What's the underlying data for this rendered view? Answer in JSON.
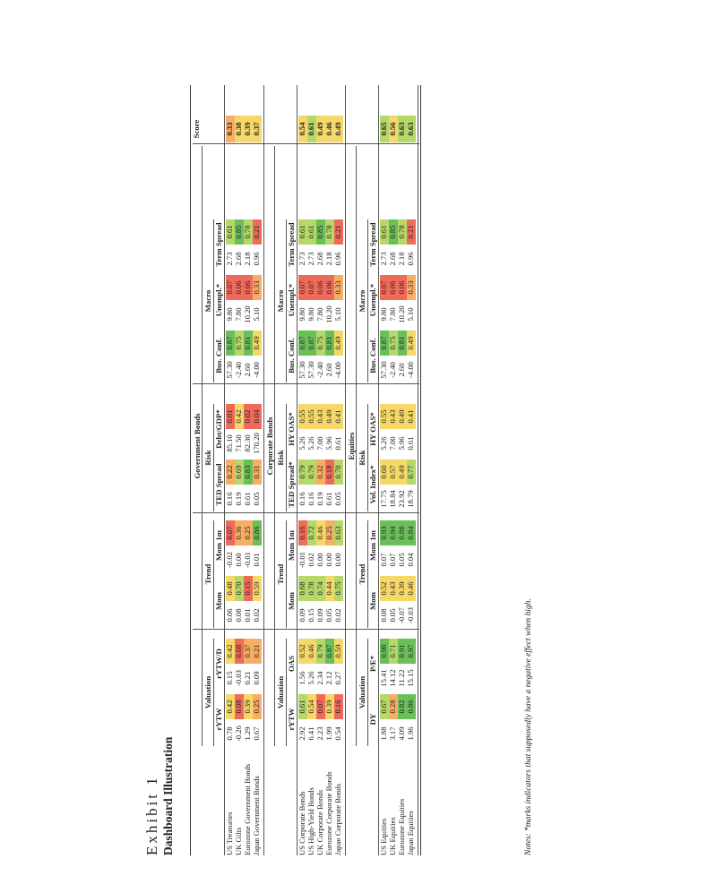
{
  "exhibit": {
    "label": "Exhibit 1",
    "title": "Dashboard Illustration"
  },
  "score_header": "Score",
  "notes": "Notes: *marks indicators that supposedly have a negative effect when high.",
  "colors": {
    "green": "#6bbf59",
    "lightgreen": "#b5d869",
    "yellow": "#f5d867",
    "orange": "#f7ad63",
    "red": "#ef6a5a"
  },
  "sections": [
    {
      "name": "Government Bonds",
      "groups": [
        {
          "name": "Valuation",
          "columns": [
            "rYTW",
            "rYTW/D"
          ]
        },
        {
          "name": "Trend",
          "columns": [
            "Mom",
            "Mom 1m"
          ]
        },
        {
          "name": "Risk",
          "columns": [
            "TED Spread",
            "Debt/GDP*"
          ]
        },
        {
          "name": "Macro",
          "columns": [
            "Bus. Conf.",
            "Unempl.*",
            "Term Spread"
          ]
        }
      ],
      "rows": [
        {
          "label": "US Treasuries",
          "cells": [
            [
              "0.78",
              "0.42",
              "yellow"
            ],
            [
              "0.15",
              "0.42",
              "yellow"
            ],
            [
              "0.06",
              "0.48",
              "yellow"
            ],
            [
              "-0.02",
              "0.07",
              "red"
            ],
            [
              "0.16",
              "0.22",
              "orange"
            ],
            [
              "85.10",
              "0.01",
              "red"
            ],
            [
              "57.30",
              "0.87",
              "green"
            ],
            [
              "9.80",
              "0.07",
              "red"
            ],
            [
              "2.73",
              "0.61",
              "lightgreen"
            ]
          ],
          "score": [
            "0.33",
            "orange"
          ]
        },
        {
          "label": "UK Gilts",
          "cells": [
            [
              "-0.26",
              "0.08",
              "red"
            ],
            [
              "-0.03",
              "0.08",
              "red"
            ],
            [
              "0.08",
              "0.70",
              "lightgreen"
            ],
            [
              "0.00",
              "0.36",
              "orange"
            ],
            [
              "0.19",
              "0.69",
              "lightgreen"
            ],
            [
              "71.50",
              "0.42",
              "yellow"
            ],
            [
              "-2.40",
              "0.75",
              "lightgreen"
            ],
            [
              "7.80",
              "0.06",
              "red"
            ],
            [
              "2.68",
              "0.85",
              "green"
            ]
          ],
          "score": [
            "0.38",
            "yellow"
          ]
        },
        {
          "label": "Eurozone Government Bonds",
          "cells": [
            [
              "1.29",
              "0.39",
              "yellow"
            ],
            [
              "0.21",
              "0.37",
              "orange"
            ],
            [
              "0.01",
              "0.15",
              "red"
            ],
            [
              "-0.01",
              "0.25",
              "orange"
            ],
            [
              "0.61",
              "0.83",
              "green"
            ],
            [
              "82.30",
              "0.02",
              "red"
            ],
            [
              "2.60",
              "0.81",
              "green"
            ],
            [
              "10.20",
              "0.06",
              "red"
            ],
            [
              "2.18",
              "0.78",
              "lightgreen"
            ]
          ],
          "score": [
            "0.39",
            "yellow"
          ]
        },
        {
          "label": "Japan Government Bonds",
          "cells": [
            [
              "0.67",
              "0.25",
              "orange"
            ],
            [
              "0.09",
              "0.21",
              "orange"
            ],
            [
              "0.02",
              "0.59",
              "yellow"
            ],
            [
              "0.01",
              "0.86",
              "green"
            ],
            [
              "0.05",
              "0.31",
              "orange"
            ],
            [
              "170.20",
              "0.04",
              "red"
            ],
            [
              "-4.00",
              "0.49",
              "yellow"
            ],
            [
              "5.10",
              "0.33",
              "orange"
            ],
            [
              "0.96",
              "0.21",
              "red"
            ]
          ],
          "score": [
            "0.37",
            "yellow"
          ]
        }
      ]
    },
    {
      "name": "Corporate Bonds",
      "groups": [
        {
          "name": "Valuation",
          "columns": [
            "rYTW",
            "OAS"
          ]
        },
        {
          "name": "Trend",
          "columns": [
            "Mom",
            "Mom 1m"
          ]
        },
        {
          "name": "Risk",
          "columns": [
            "TED Spread*",
            "HY OAS*"
          ]
        },
        {
          "name": "Macro",
          "columns": [
            "Bus. Conf.",
            "Unempl.*",
            "Term Spread"
          ]
        }
      ],
      "rows": [
        {
          "label": "US Corporate Bonds",
          "cells": [
            [
              "2.92",
              "0.61",
              "lightgreen"
            ],
            [
              "1.56",
              "0.52",
              "yellow"
            ],
            [
              "0.09",
              "0.68",
              "lightgreen"
            ],
            [
              "-0.01",
              "0.16",
              "red"
            ],
            [
              "0.16",
              "0.79",
              "lightgreen"
            ],
            [
              "5.26",
              "0.55",
              "yellow"
            ],
            [
              "57.30",
              "0.87",
              "green"
            ],
            [
              "9.80",
              "0.07",
              "red"
            ],
            [
              "2.73",
              "0.61",
              "lightgreen"
            ]
          ],
          "score": [
            "0.54",
            "yellow"
          ]
        },
        {
          "label": "US High-Yield Bonds",
          "cells": [
            [
              "6.41",
              "0.54",
              "yellow"
            ],
            [
              "5.26",
              "0.46",
              "yellow"
            ],
            [
              "0.15",
              "0.78",
              "lightgreen"
            ],
            [
              "0.02",
              "0.72",
              "lightgreen"
            ],
            [
              "0.16",
              "0.79",
              "lightgreen"
            ],
            [
              "5.26",
              "0.55",
              "yellow"
            ],
            [
              "57.30",
              "0.87",
              "green"
            ],
            [
              "9.80",
              "0.07",
              "red"
            ],
            [
              "2.73",
              "0.61",
              "lightgreen"
            ]
          ],
          "score": [
            "0.61",
            "lightgreen"
          ]
        },
        {
          "label": "UK Corporate Bonds",
          "cells": [
            [
              "2.23",
              "0.07",
              "red"
            ],
            [
              "2.34",
              "0.79",
              "lightgreen"
            ],
            [
              "0.09",
              "0.74",
              "lightgreen"
            ],
            [
              "0.00",
              "0.46",
              "yellow"
            ],
            [
              "0.19",
              "0.32",
              "orange"
            ],
            [
              "7.00",
              "0.43",
              "yellow"
            ],
            [
              "-2.40",
              "0.75",
              "lightgreen"
            ],
            [
              "7.80",
              "0.06",
              "red"
            ],
            [
              "2.68",
              "0.85",
              "green"
            ]
          ],
          "score": [
            "0.49",
            "yellow"
          ]
        },
        {
          "label": "Eurozone Corporate Bonds",
          "cells": [
            [
              "1.99",
              "0.39",
              "yellow"
            ],
            [
              "2.12",
              "0.87",
              "green"
            ],
            [
              "0.05",
              "0.44",
              "yellow"
            ],
            [
              "0.00",
              "0.25",
              "orange"
            ],
            [
              "0.61",
              "0.18",
              "red"
            ],
            [
              "5.96",
              "0.49",
              "yellow"
            ],
            [
              "2.60",
              "0.81",
              "green"
            ],
            [
              "10.20",
              "0.06",
              "red"
            ],
            [
              "2.18",
              "0.78",
              "lightgreen"
            ]
          ],
          "score": [
            "0.46",
            "yellow"
          ]
        },
        {
          "label": "Japan Corporate Bonds",
          "cells": [
            [
              "0.54",
              "0.16",
              "red"
            ],
            [
              "0.27",
              "0.59",
              "yellow"
            ],
            [
              "0.02",
              "0.75",
              "lightgreen"
            ],
            [
              "0.00",
              "0.63",
              "lightgreen"
            ],
            [
              "0.05",
              "0.70",
              "lightgreen"
            ],
            [
              "0.61",
              "0.41",
              "yellow"
            ],
            [
              "-4.00",
              "0.49",
              "yellow"
            ],
            [
              "5.10",
              "0.33",
              "orange"
            ],
            [
              "0.96",
              "0.21",
              "red"
            ]
          ],
          "score": [
            "0.49",
            "yellow"
          ]
        }
      ]
    },
    {
      "name": "Equities",
      "groups": [
        {
          "name": "Valuation",
          "columns": [
            "DY",
            "P/E*"
          ]
        },
        {
          "name": "Trend",
          "columns": [
            "Mom",
            "Mom 1m"
          ]
        },
        {
          "name": "Risk",
          "columns": [
            "Vol. Index*",
            "HY OAS*"
          ]
        },
        {
          "name": "Macro",
          "columns": [
            "Bus. Conf.",
            "Unempl.*",
            "Term Spread"
          ]
        }
      ],
      "rows": [
        {
          "label": "US Equities",
          "cells": [
            [
              "1.88",
              "0.67",
              "lightgreen"
            ],
            [
              "15.41",
              "0.90",
              "green"
            ],
            [
              "0.08",
              "0.52",
              "yellow"
            ],
            [
              "0.07",
              "0.93",
              "green"
            ],
            [
              "17.75",
              "0.60",
              "yellow"
            ],
            [
              "5.26",
              "0.55",
              "yellow"
            ],
            [
              "57.30",
              "0.87",
              "green"
            ],
            [
              "9.80",
              "0.07",
              "red"
            ],
            [
              "2.73",
              "0.61",
              "lightgreen"
            ]
          ],
          "score": [
            "0.65",
            "lightgreen"
          ]
        },
        {
          "label": "UK Equities",
          "cells": [
            [
              "3.17",
              "0.28",
              "orange"
            ],
            [
              "14.12",
              "0.71",
              "lightgreen"
            ],
            [
              "0.05",
              "0.43",
              "yellow"
            ],
            [
              "0.07",
              "0.94",
              "green"
            ],
            [
              "18.84",
              "0.57",
              "yellow"
            ],
            [
              "7.00",
              "0.43",
              "yellow"
            ],
            [
              "-2.40",
              "0.75",
              "lightgreen"
            ],
            [
              "7.80",
              "0.06",
              "red"
            ],
            [
              "2.68",
              "0.85",
              "green"
            ]
          ],
          "score": [
            "0.56",
            "yellow"
          ]
        },
        {
          "label": "Eurozone Equities",
          "cells": [
            [
              "4.09",
              "0.82",
              "green"
            ],
            [
              "11.22",
              "0.91",
              "green"
            ],
            [
              "-0.07",
              "0.39",
              "yellow"
            ],
            [
              "0.05",
              "0.88",
              "green"
            ],
            [
              "23.92",
              "0.49",
              "yellow"
            ],
            [
              "5.96",
              "0.49",
              "yellow"
            ],
            [
              "2.60",
              "0.81",
              "green"
            ],
            [
              "10.20",
              "0.06",
              "red"
            ],
            [
              "2.18",
              "0.78",
              "lightgreen"
            ]
          ],
          "score": [
            "0.63",
            "lightgreen"
          ]
        },
        {
          "label": "Japan Equities",
          "cells": [
            [
              "1.96",
              "0.86",
              "green"
            ],
            [
              "15.15",
              "0.97",
              "green"
            ],
            [
              "-0.03",
              "0.46",
              "yellow"
            ],
            [
              "0.04",
              "0.84",
              "green"
            ],
            [
              "18.79",
              "0.77",
              "lightgreen"
            ],
            [
              "0.61",
              "0.41",
              "yellow"
            ],
            [
              "-4.00",
              "0.49",
              "yellow"
            ],
            [
              "5.10",
              "0.33",
              "orange"
            ],
            [
              "0.96",
              "0.21",
              "red"
            ]
          ],
          "score": [
            "0.63",
            "lightgreen"
          ]
        }
      ]
    }
  ]
}
